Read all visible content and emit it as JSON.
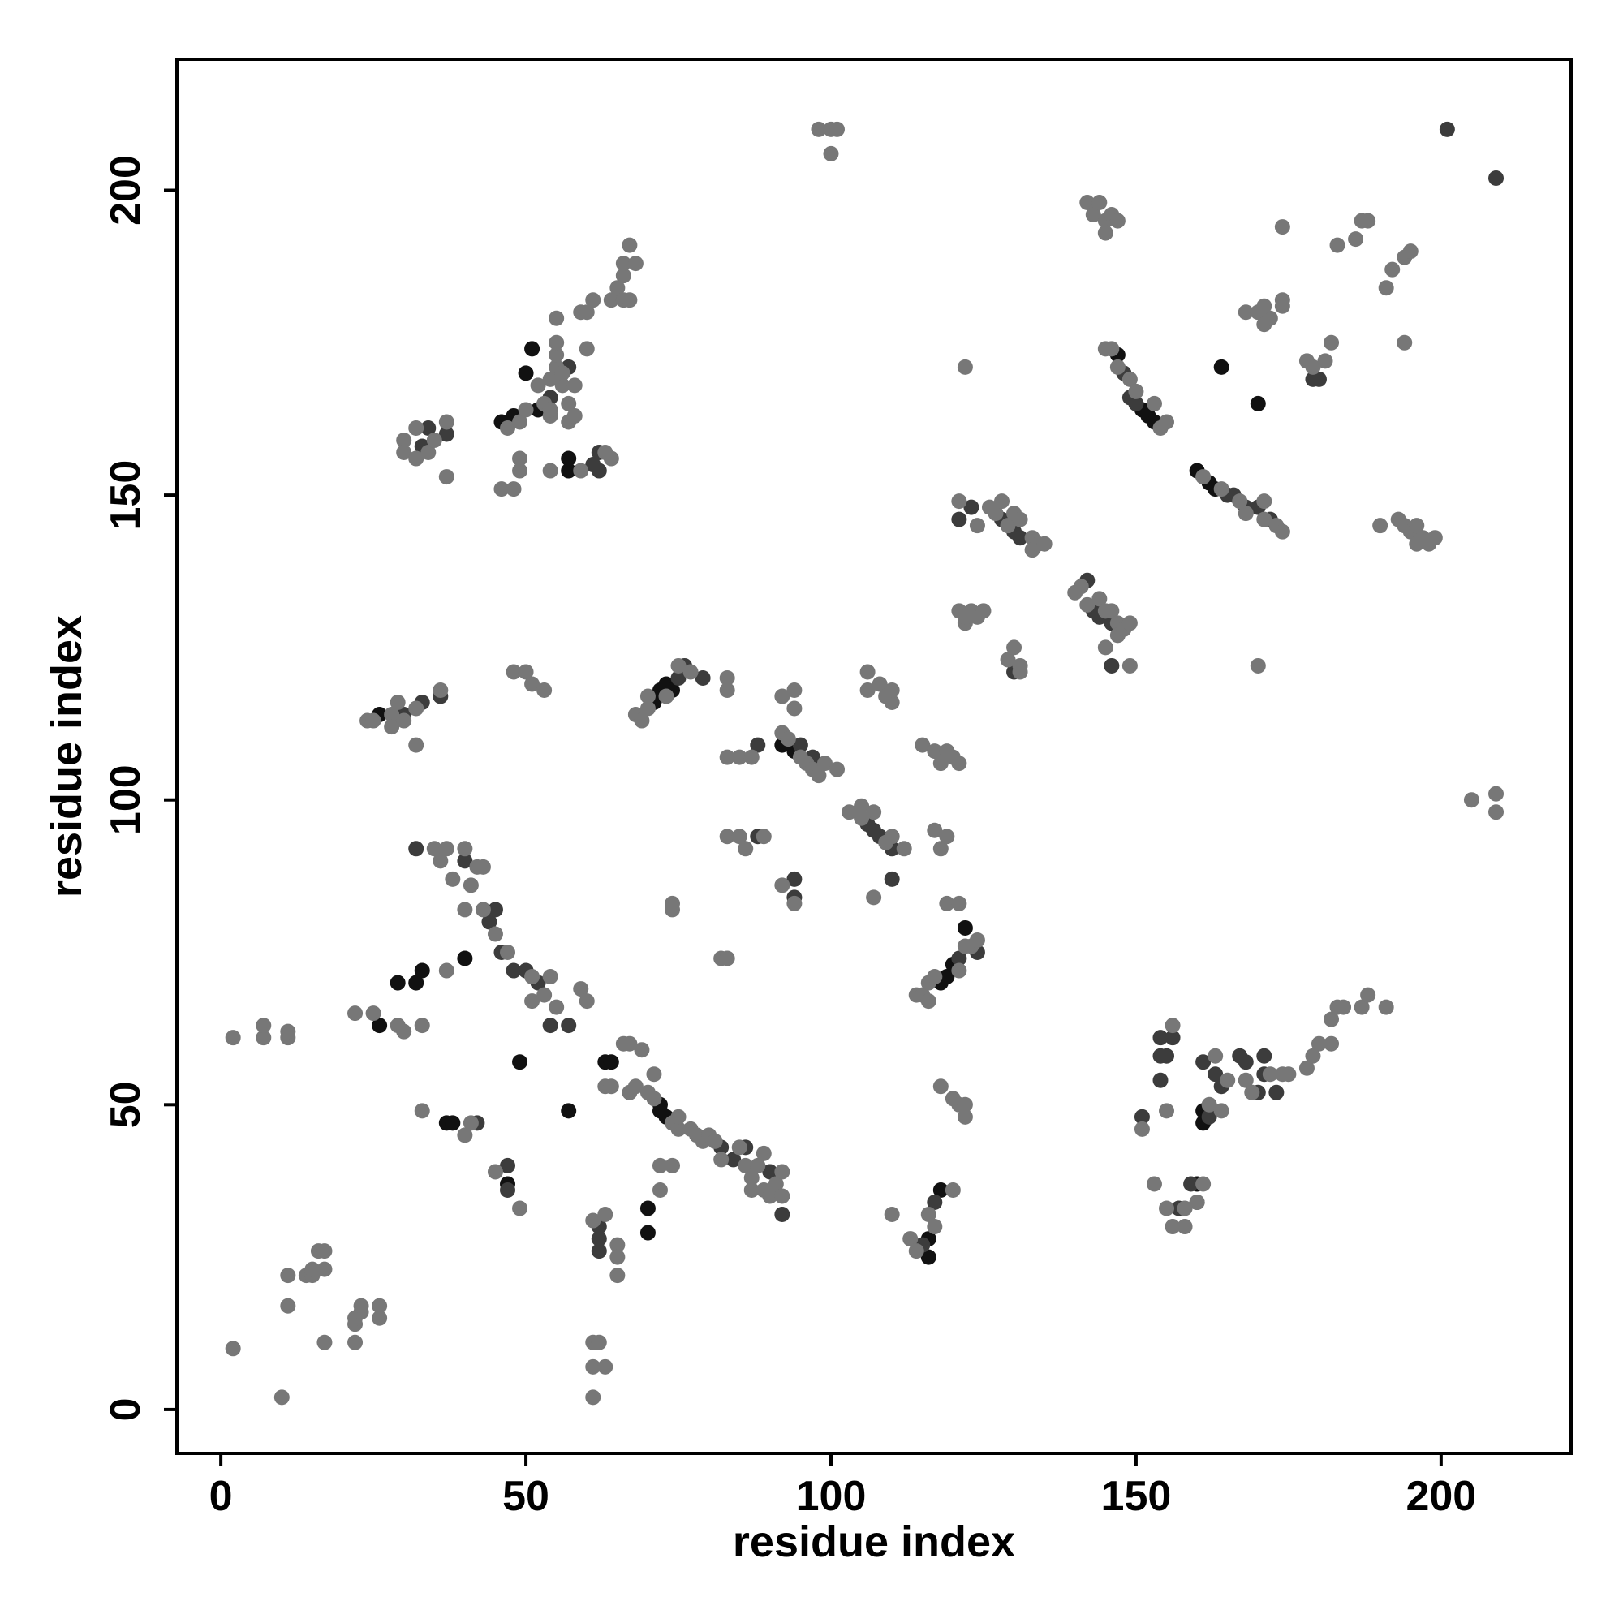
{
  "chart_data": {
    "type": "scatter",
    "xlabel": "residue index",
    "ylabel": "residue index",
    "xlim": [
      -7.2,
      221.3
    ],
    "ylim": [
      -7.2,
      221.5
    ],
    "xticks": [
      0,
      50,
      100,
      150,
      200
    ],
    "yticks": [
      0,
      50,
      100,
      150,
      200
    ],
    "grid": false,
    "series": [
      {
        "color": "#111111",
        "x": [
          26,
          26,
          29,
          32,
          33,
          40,
          49,
          57,
          37,
          38,
          47,
          70,
          70,
          72,
          72,
          73,
          71,
          72,
          73,
          74,
          92,
          94,
          116,
          116,
          118,
          118,
          119,
          120,
          122,
          147,
          151,
          152,
          153,
          160,
          162,
          163,
          164,
          170,
          161,
          161,
          160,
          63,
          64,
          46,
          48,
          52,
          50,
          51,
          57,
          57
        ],
        "values": [
          114,
          63,
          70,
          70,
          72,
          74,
          57,
          49,
          47,
          47,
          37,
          29,
          33,
          50,
          49,
          48,
          116,
          118,
          119,
          118,
          109,
          108,
          25,
          28,
          36,
          70,
          71,
          73,
          79,
          173,
          164,
          163,
          162,
          154,
          152,
          151,
          171,
          165,
          47,
          49,
          37,
          57,
          57,
          162,
          163,
          164,
          170,
          174,
          154,
          156
        ]
      },
      {
        "color": "#3c3c3c",
        "x": [
          32,
          40,
          44,
          45,
          46,
          48,
          50,
          52,
          54,
          57,
          30,
          33,
          75,
          76,
          79,
          82,
          84,
          86,
          90,
          92,
          95,
          97,
          106,
          107,
          108,
          110,
          94,
          94,
          110,
          117,
          115,
          121,
          124,
          148,
          149,
          150,
          165,
          166,
          168,
          170,
          172,
          128,
          130,
          131,
          142,
          143,
          144,
          146,
          130,
          146,
          154,
          154,
          155,
          156,
          161,
          162,
          164,
          167,
          168,
          170,
          171,
          173,
          159,
          157,
          33,
          34,
          37,
          54,
          57,
          61,
          62,
          62,
          201,
          209,
          36,
          88,
          88,
          121,
          123,
          62,
          62,
          62,
          47,
          47,
          42,
          151,
          154,
          160,
          163,
          171,
          179,
          180
        ],
        "values": [
          92,
          90,
          80,
          82,
          75,
          72,
          72,
          70,
          63,
          63,
          114,
          116,
          120,
          122,
          120,
          43,
          41,
          43,
          39,
          32,
          109,
          107,
          96,
          95,
          94,
          92,
          87,
          84,
          87,
          34,
          27,
          74,
          75,
          170,
          166,
          165,
          150,
          150,
          148,
          148,
          146,
          146,
          144,
          143,
          136,
          131,
          130,
          129,
          121,
          122,
          61,
          58,
          58,
          61,
          57,
          48,
          53,
          58,
          57,
          52,
          58,
          52,
          37,
          33,
          158,
          161,
          160,
          166,
          171,
          155,
          157,
          154,
          210,
          202,
          117,
          94,
          109,
          146,
          148,
          30,
          28,
          26,
          36,
          40,
          47,
          48,
          54,
          34,
          55,
          55,
          169,
          169
        ]
      },
      {
        "color": "#777777",
        "x": [
          2,
          2,
          7,
          7,
          10,
          11,
          11,
          11,
          11,
          14,
          15,
          15,
          16,
          17,
          17,
          17,
          22,
          22,
          22,
          23,
          23,
          26,
          26,
          22,
          25,
          29,
          30,
          33,
          37,
          35,
          36,
          37,
          38,
          40,
          41,
          42,
          43,
          40,
          43,
          45,
          47,
          51,
          54,
          51,
          53,
          55,
          59,
          60,
          33,
          40,
          41,
          45,
          49,
          63,
          64,
          66,
          67,
          69,
          67,
          68,
          70,
          71,
          71,
          74,
          75,
          75,
          77,
          78,
          79,
          80,
          81,
          82,
          85,
          86,
          87,
          87,
          88,
          89,
          89,
          90,
          91,
          92,
          92,
          61,
          63,
          65,
          65,
          65,
          61,
          62,
          61,
          63,
          61,
          72,
          72,
          74,
          74,
          74,
          82,
          83,
          32,
          28,
          24,
          25,
          28,
          29,
          30,
          32,
          36,
          48,
          50,
          51,
          53,
          68,
          69,
          70,
          70,
          73,
          75,
          77,
          83,
          83,
          83,
          85,
          87,
          83,
          85,
          86,
          89,
          92,
          94,
          94,
          92,
          93,
          95,
          96,
          97,
          98,
          99,
          101,
          92,
          94,
          103,
          105,
          105,
          107,
          109,
          110,
          112,
          106,
          106,
          108,
          109,
          110,
          110,
          107,
          113,
          114,
          116,
          117,
          120,
          110,
          114,
          115,
          116,
          116,
          117,
          121,
          122,
          123,
          124,
          117,
          118,
          119,
          119,
          121,
          115,
          117,
          118,
          119,
          121,
          120,
          118,
          120,
          121,
          122,
          122,
          30,
          30,
          32,
          32,
          34,
          35,
          37,
          37,
          47,
          49,
          50,
          53,
          54,
          54,
          55,
          55,
          55,
          52,
          54,
          56,
          58,
          57,
          57,
          58,
          59,
          60,
          61,
          60,
          55,
          56,
          46,
          48,
          49,
          49,
          54,
          59,
          63,
          64,
          64,
          65,
          66,
          66,
          67,
          66,
          67,
          68,
          98,
          100,
          101,
          100,
          142,
          143,
          144,
          145,
          146,
          145,
          147,
          145,
          146,
          147,
          149,
          150,
          153,
          154,
          155,
          161,
          164,
          167,
          168,
          171,
          173,
          174,
          171,
          122,
          168,
          170,
          171,
          172,
          171,
          174,
          174,
          174,
          178,
          179,
          181,
          182,
          183,
          186,
          187,
          188,
          191,
          192,
          194,
          195,
          194,
          190,
          193,
          194,
          195,
          196,
          197,
          198,
          199,
          196,
          205,
          209,
          209,
          170,
          121,
          124,
          126,
          127,
          128,
          129,
          130,
          131,
          133,
          133,
          134,
          135,
          121,
          122,
          123,
          124,
          125,
          122,
          129,
          130,
          131,
          131,
          140,
          141,
          142,
          144,
          145,
          146,
          147,
          147,
          148,
          149,
          145,
          149,
          151,
          153,
          156,
          155,
          155,
          156,
          158,
          160,
          162,
          163,
          164,
          165,
          168,
          169,
          172,
          174,
          175,
          178,
          179,
          180,
          182,
          182,
          183,
          184,
          187,
          188,
          191,
          158,
          161
        ],
        "values": [
          10,
          61,
          61,
          63,
          2,
          61,
          62,
          17,
          22,
          22,
          22,
          23,
          26,
          26,
          23,
          11,
          11,
          14,
          15,
          16,
          17,
          15,
          17,
          65,
          65,
          63,
          62,
          63,
          72,
          92,
          90,
          92,
          87,
          92,
          86,
          89,
          89,
          82,
          82,
          78,
          75,
          71,
          71,
          67,
          68,
          66,
          69,
          67,
          49,
          45,
          47,
          39,
          33,
          53,
          53,
          60,
          60,
          59,
          52,
          53,
          52,
          55,
          51,
          47,
          46,
          48,
          46,
          45,
          44,
          45,
          44,
          41,
          43,
          40,
          38,
          36,
          40,
          42,
          36,
          35,
          37,
          39,
          35,
          31,
          32,
          27,
          25,
          22,
          11,
          11,
          7,
          7,
          2,
          36,
          40,
          40,
          83,
          82,
          74,
          74,
          115,
          114,
          113,
          113,
          112,
          116,
          113,
          109,
          118,
          121,
          121,
          119,
          118,
          114,
          113,
          115,
          117,
          117,
          122,
          121,
          120,
          118,
          107,
          107,
          107,
          94,
          94,
          92,
          94,
          117,
          118,
          115,
          111,
          110,
          107,
          106,
          105,
          104,
          106,
          105,
          86,
          83,
          98,
          97,
          99,
          98,
          93,
          94,
          92,
          118,
          121,
          119,
          117,
          116,
          118,
          84,
          28,
          26,
          32,
          30,
          36,
          32,
          68,
          68,
          70,
          67,
          71,
          72,
          76,
          76,
          77,
          95,
          92,
          94,
          83,
          83,
          109,
          108,
          106,
          108,
          106,
          107,
          53,
          51,
          50,
          50,
          48,
          159,
          157,
          156,
          161,
          157,
          159,
          162,
          153,
          161,
          162,
          164,
          165,
          163,
          169,
          171,
          173,
          175,
          168,
          164,
          168,
          168,
          165,
          162,
          163,
          180,
          180,
          182,
          174,
          179,
          170,
          151,
          151,
          154,
          156,
          154,
          154,
          157,
          156,
          182,
          184,
          182,
          186,
          182,
          188,
          191,
          188,
          210,
          210,
          210,
          206,
          198,
          196,
          198,
          195,
          196,
          193,
          195,
          174,
          174,
          171,
          169,
          167,
          165,
          161,
          162,
          153,
          151,
          149,
          147,
          149,
          145,
          144,
          146,
          171,
          180,
          180,
          178,
          179,
          181,
          182,
          181,
          194,
          172,
          171,
          172,
          175,
          191,
          192,
          195,
          195,
          184,
          187,
          189,
          190,
          175,
          145,
          146,
          145,
          144,
          145,
          143,
          142,
          143,
          142,
          100,
          101,
          98,
          122,
          149,
          145,
          148,
          147,
          149,
          145,
          147,
          146,
          143,
          141,
          142,
          142,
          131,
          129,
          131,
          130,
          131,
          130,
          123,
          125,
          122,
          121,
          134,
          135,
          132,
          133,
          131,
          131,
          129,
          127,
          128,
          129,
          125,
          122,
          46,
          37,
          63,
          49,
          33,
          30,
          30,
          34,
          50,
          58,
          49,
          54,
          54,
          52,
          55,
          55,
          55,
          56,
          58,
          60,
          60,
          64,
          66,
          66,
          66,
          68,
          66,
          33,
          37
        ]
      }
    ]
  }
}
